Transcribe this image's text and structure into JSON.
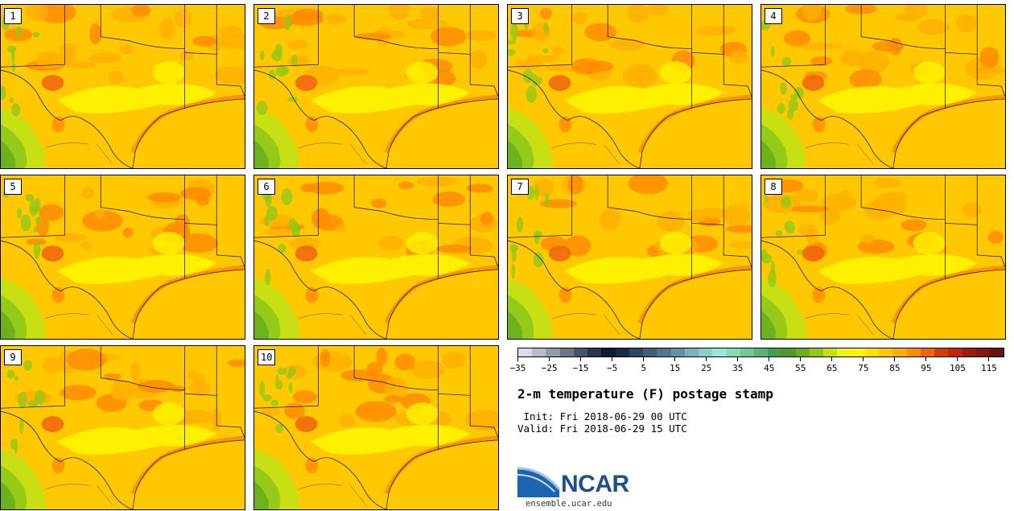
{
  "members": [
    "1",
    "2",
    "3",
    "4",
    "5",
    "6",
    "7",
    "8",
    "9",
    "10"
  ],
  "colorbar": {
    "colors": [
      "#d8dce6",
      "#b6bcc8",
      "#949aa8",
      "#6e7585",
      "#4a5266",
      "#2a3448",
      "#0e1a30",
      "#1a2c44",
      "#2e4660",
      "#3e5f78",
      "#4e7890",
      "#6095a8",
      "#76b4bc",
      "#8ccfc8",
      "#9ae6d8",
      "#88d8b0",
      "#72c896",
      "#58b478",
      "#42a04a",
      "#4e9c28",
      "#6ab01e",
      "#94c818",
      "#c4e014",
      "#eaf614",
      "#fff400",
      "#ffe000",
      "#ffc800",
      "#ffb000",
      "#ff8c00",
      "#f06410",
      "#da3a0a",
      "#c0260c",
      "#a01a0e",
      "#821810",
      "#621812"
    ],
    "tick_labels": [
      "−35",
      "−25",
      "−15",
      "−5",
      "5",
      "15",
      "25",
      "35",
      "45",
      "55",
      "65",
      "75",
      "85",
      "95",
      "105",
      "115"
    ],
    "min": -35,
    "max": 120,
    "tick_start": -35,
    "tick_step": 10
  },
  "title": "2-m temperature (F) postage stamp",
  "init": " Init: Fri 2018-06-29 00 UTC",
  "valid": "Valid: Fri 2018-06-29 15 UTC",
  "logo": {
    "text": "NCAR",
    "url": "ensemble.ucar.edu",
    "color": "#1f4f8a"
  }
}
